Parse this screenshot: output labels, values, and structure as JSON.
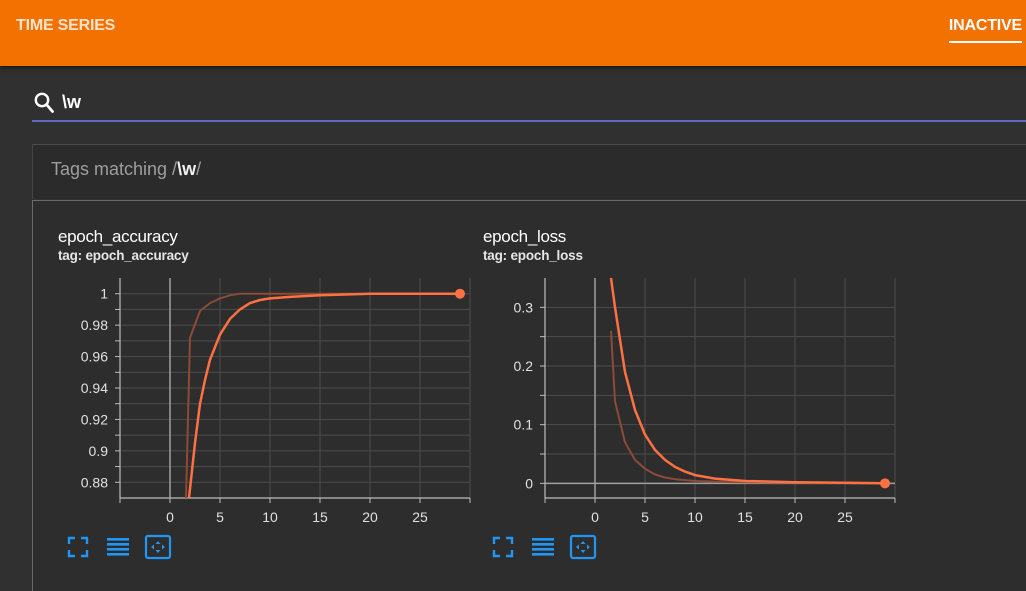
{
  "header": {
    "title": "TIME SERIES",
    "status_tab": "INACTIVE"
  },
  "search": {
    "query": "\\w"
  },
  "tag_group": {
    "prefix": "Tags matching /",
    "pattern": "\\w",
    "suffix": "/"
  },
  "colors": {
    "header_bg": "#f27101",
    "series": "#ff7043",
    "smoothed_raw": "#8d4b37",
    "tool_icon": "#2196f3"
  },
  "icons": [
    "search-icon",
    "fullscreen-icon",
    "log-scale-icon",
    "fit-domain-icon"
  ],
  "cards": [
    {
      "title": "epoch_accuracy",
      "tag": "tag: epoch_accuracy"
    },
    {
      "title": "epoch_loss",
      "tag": "tag: epoch_loss"
    }
  ],
  "chart_data": [
    {
      "type": "line",
      "title": "epoch_accuracy",
      "xlim": [
        -5,
        30
      ],
      "ylim": [
        0.87,
        1.01
      ],
      "xticks": [
        "0",
        "5",
        "10",
        "15",
        "20",
        "25"
      ],
      "yticks": [
        "0.88",
        "0.9",
        "0.92",
        "0.94",
        "0.96",
        "0.98",
        "1"
      ],
      "grid": true,
      "series": [
        {
          "x": [
            1.6,
            2,
            3,
            4,
            5,
            6,
            7,
            8,
            10,
            12,
            15,
            20,
            25,
            29
          ],
          "y": [
            0.87,
            0.972,
            0.989,
            0.994,
            0.997,
            0.999,
            1.0,
            1.0,
            1.0,
            1.0,
            1.0,
            1.0,
            1.0,
            1.0
          ]
        },
        {
          "x": [
            1.9,
            2.5,
            3,
            3.5,
            4,
            5,
            6,
            7,
            8,
            9,
            10,
            12,
            15,
            20,
            25,
            29
          ],
          "y": [
            0.87,
            0.905,
            0.93,
            0.945,
            0.958,
            0.974,
            0.984,
            0.99,
            0.994,
            0.996,
            0.997,
            0.998,
            0.999,
            1.0,
            1.0,
            1.0
          ]
        }
      ]
    },
    {
      "type": "line",
      "title": "epoch_loss",
      "xlim": [
        -5,
        30
      ],
      "ylim": [
        -0.025,
        0.35
      ],
      "xticks": [
        "0",
        "5",
        "10",
        "15",
        "20",
        "25"
      ],
      "yticks": [
        "0",
        "0.1",
        "0.2",
        "0.3"
      ],
      "grid": true,
      "series": [
        {
          "x": [
            1.6,
            2,
            3,
            4,
            5,
            6,
            7,
            8,
            10,
            12,
            15,
            20,
            25,
            29
          ],
          "y": [
            0.26,
            0.14,
            0.07,
            0.04,
            0.025,
            0.015,
            0.01,
            0.007,
            0.004,
            0.003,
            0.002,
            0.001,
            0.0,
            0.0
          ]
        },
        {
          "x": [
            1.6,
            2,
            3,
            4,
            5,
            6,
            7,
            8,
            9,
            10,
            12,
            15,
            20,
            25,
            29
          ],
          "y": [
            0.35,
            0.3,
            0.19,
            0.125,
            0.083,
            0.057,
            0.04,
            0.028,
            0.02,
            0.014,
            0.008,
            0.004,
            0.002,
            0.001,
            0.0
          ]
        }
      ]
    }
  ]
}
